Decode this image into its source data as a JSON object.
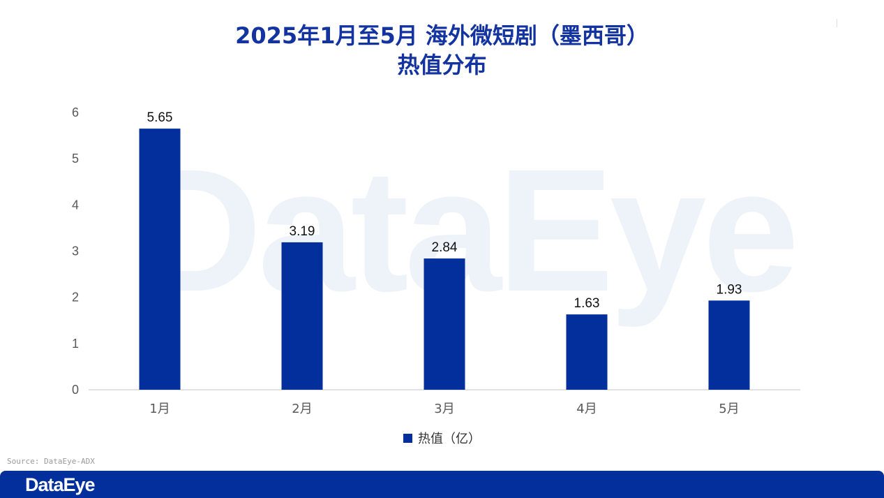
{
  "title_lines": [
    "2025年1月至5月  海外微短剧（墨西哥）",
    "热值分布"
  ],
  "watermark": "DataEye",
  "source": "Source: DataEye-ADX",
  "footer_brand": "DataEye",
  "chart_data": {
    "type": "bar",
    "title": "2025年1月至5月  海外微短剧（墨西哥）热值分布",
    "categories": [
      "1月",
      "2月",
      "3月",
      "4月",
      "5月"
    ],
    "series": [
      {
        "name": "热值（亿）",
        "values": [
          5.65,
          3.19,
          2.84,
          1.63,
          1.93
        ],
        "color": "#032f9c"
      }
    ],
    "ylim": [
      0,
      6
    ],
    "yticks": [
      0,
      1,
      2,
      3,
      4,
      5,
      6
    ],
    "data_labels": [
      "5.65",
      "3.19",
      "2.84",
      "1.63",
      "1.93"
    ],
    "legend": "bottom-center",
    "grid": false
  }
}
